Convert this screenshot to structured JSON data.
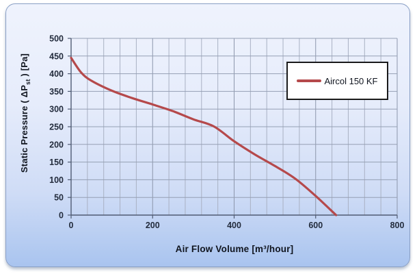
{
  "chart_data": {
    "type": "line",
    "title": "",
    "xlabel": "Air Flow Volume [m³/hour]",
    "ylabel": {
      "prefix": "Static Pressure ( ΔP",
      "subscript": "st",
      "suffix": " ) [Pa]"
    },
    "xlim": [
      0,
      800
    ],
    "ylim": [
      0,
      500
    ],
    "x_major_ticks": [
      0,
      200,
      400,
      600,
      800
    ],
    "x_minor_step": 40,
    "y_ticks": [
      0,
      50,
      100,
      150,
      200,
      250,
      300,
      350,
      400,
      450,
      500
    ],
    "grid": "on",
    "legend": {
      "position": "upper-right-inside",
      "label": "Aircol 150 KF"
    },
    "series": [
      {
        "name": "Aircol 150 KF",
        "color": "#b5494b",
        "points": [
          [
            0,
            445
          ],
          [
            25,
            403
          ],
          [
            50,
            380
          ],
          [
            100,
            352
          ],
          [
            150,
            331
          ],
          [
            200,
            313
          ],
          [
            250,
            294
          ],
          [
            300,
            271
          ],
          [
            350,
            251
          ],
          [
            400,
            209
          ],
          [
            450,
            172
          ],
          [
            500,
            139
          ],
          [
            550,
            103
          ],
          [
            600,
            54
          ],
          [
            650,
            0
          ]
        ]
      }
    ]
  },
  "colors": {
    "frame_border": "#8aa0c6",
    "background_top": "#eff3fd",
    "background_bottom": "#a9c4ef",
    "gridline_horizontal": "#959fb4",
    "gridline_minor_vertical": "#a9b1c3",
    "gridline_major_vertical": "#8c96ab",
    "axis": "#4f5b73",
    "tick_text": "#232c3d",
    "legend_border": "#1a1a1a",
    "series": "#b5494b"
  }
}
